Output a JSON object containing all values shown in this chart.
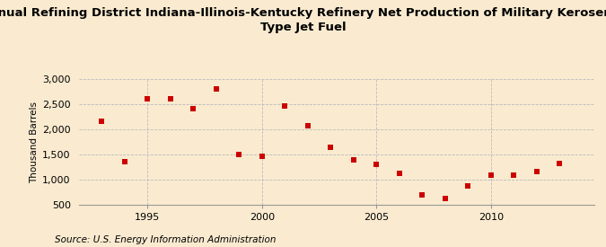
{
  "title_line1": "Annual Refining District Indiana-Illinois-Kentucky Refinery Net Production of Military Kerosene-",
  "title_line2": "Type Jet Fuel",
  "ylabel": "Thousand Barrels",
  "source": "Source: U.S. Energy Information Administration",
  "background_color": "#faebd0",
  "grid_color": "#bbbbbb",
  "marker_color": "#cc0000",
  "years": [
    1993,
    1994,
    1995,
    1996,
    1997,
    1998,
    1999,
    2000,
    2001,
    2002,
    2003,
    2004,
    2005,
    2006,
    2007,
    2008,
    2009,
    2010,
    2011,
    2012,
    2013
  ],
  "values": [
    2170,
    1360,
    2610,
    2600,
    2420,
    2800,
    1500,
    1470,
    2470,
    2070,
    1650,
    1390,
    1310,
    1120,
    700,
    630,
    870,
    1090,
    1100,
    1160,
    1320
  ],
  "xlim": [
    1992.0,
    2014.5
  ],
  "ylim": [
    500,
    3000
  ],
  "yticks": [
    500,
    1000,
    1500,
    2000,
    2500,
    3000
  ],
  "xticks": [
    1995,
    2000,
    2005,
    2010
  ],
  "marker_size": 5,
  "title_fontsize": 9.5,
  "label_fontsize": 7.5,
  "tick_fontsize": 8,
  "source_fontsize": 7.5
}
